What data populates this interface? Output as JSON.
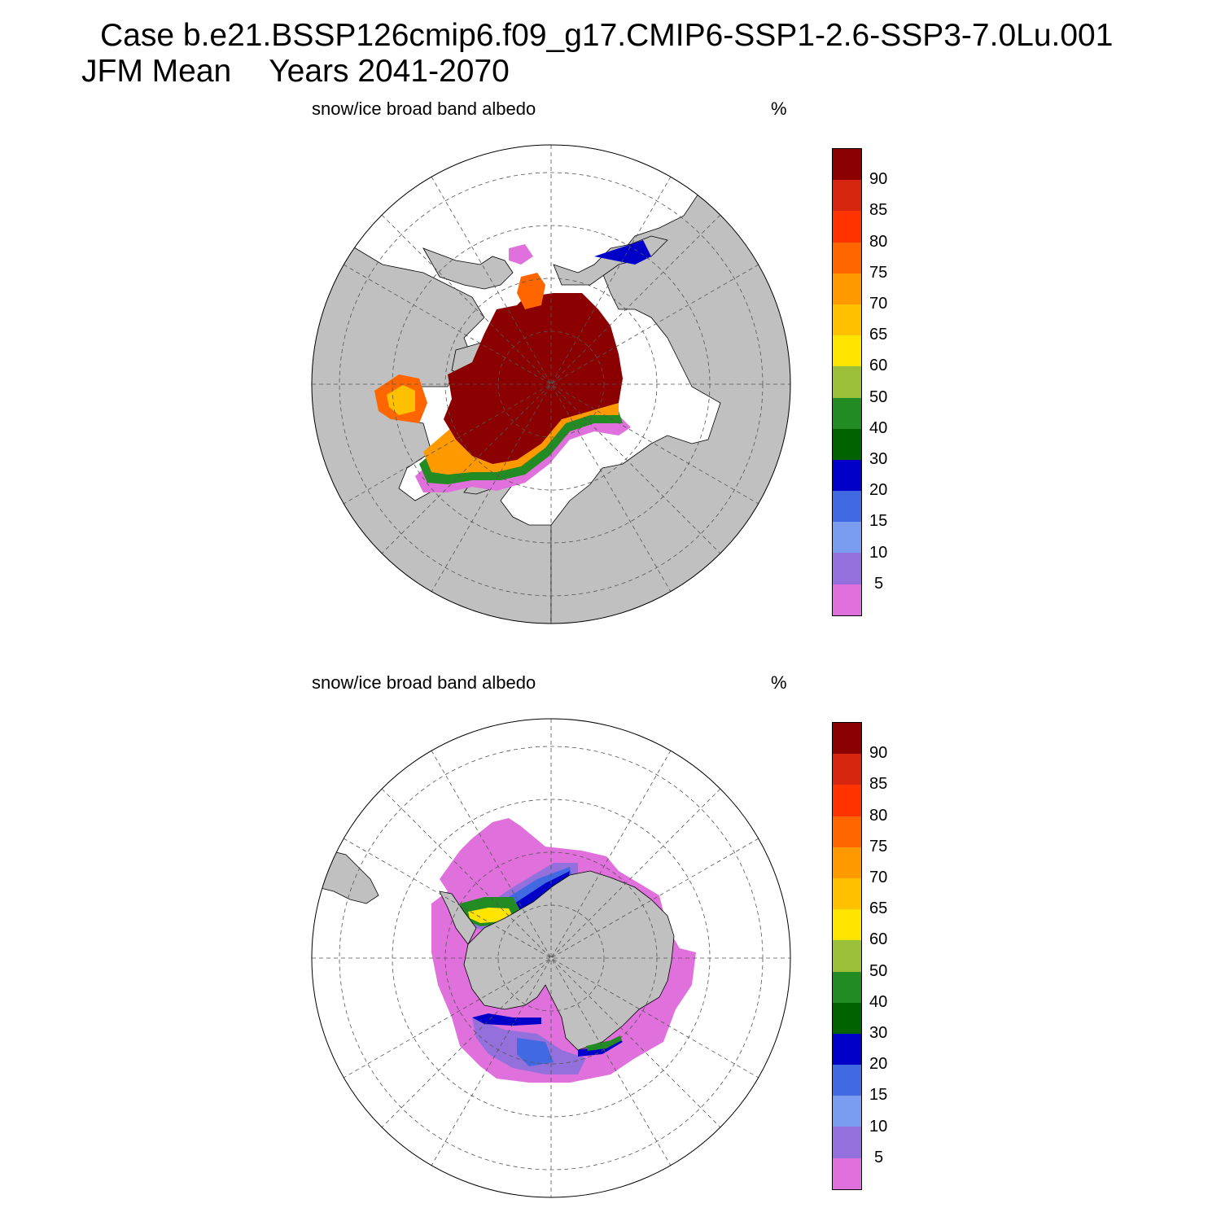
{
  "figure": {
    "title_line1": "Case b.e21.BSSP126cmip6.f09_g17.CMIP6-SSP1-2.6-SSP3-7.0Lu.001",
    "season": "JFM Mean",
    "years": "Years 2041-2070"
  },
  "panels": [
    {
      "id": "nh",
      "hemisphere": "north",
      "variable": "snow/ice broad band albedo",
      "units": "%"
    },
    {
      "id": "sh",
      "hemisphere": "south",
      "variable": "snow/ice broad band albedo",
      "units": "%"
    }
  ],
  "colorbar": {
    "labels": [
      "90",
      "85",
      "80",
      "75",
      "70",
      "65",
      "60",
      "50",
      "40",
      "30",
      "20",
      "15",
      "10",
      "5"
    ],
    "colors": [
      "#8B0000",
      "#D7260F",
      "#FF3300",
      "#FF6600",
      "#FF9900",
      "#FFC000",
      "#FFE400",
      "#9CBF3A",
      "#238B23",
      "#006300",
      "#0000C8",
      "#4169E1",
      "#7A9DF0",
      "#9370DB",
      "#E070DC"
    ]
  },
  "map_colors": {
    "land": "#C0C0C0",
    "ocean": "#FFFFFF",
    "grid": "#555555"
  }
}
